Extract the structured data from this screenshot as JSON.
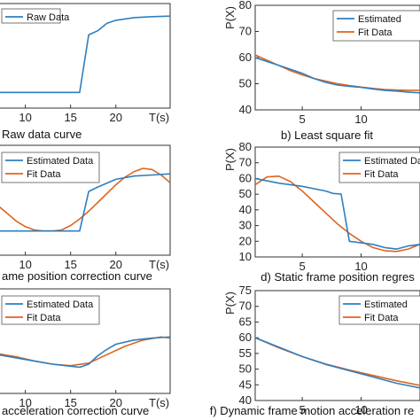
{
  "colors": {
    "estimated": "#2d7fc0",
    "fit": "#e0641e",
    "axis": "#333333",
    "background": "#ffffff"
  },
  "chart_data": [
    {
      "id": "a",
      "type": "line",
      "caption": "Raw data curve",
      "xunit": "T(s)",
      "ylabel": "",
      "xticks": [
        10,
        15,
        20
      ],
      "xlim": [
        7,
        26
      ],
      "ylim": [
        0,
        100
      ],
      "grid": false,
      "legend": {
        "position": "top-left",
        "entries": [
          "Raw Data"
        ]
      },
      "series": [
        {
          "name": "Raw Data",
          "color_key": "estimated",
          "x": [
            7,
            16,
            17,
            18,
            19,
            20,
            22,
            24,
            26
          ],
          "y": [
            15,
            15,
            70,
            74,
            81,
            84,
            86.5,
            87.5,
            88
          ]
        }
      ]
    },
    {
      "id": "b",
      "type": "line",
      "caption": "b) Least square fit",
      "xunit": "",
      "ylabel": "P(X)",
      "yticks": [
        40,
        50,
        60,
        70,
        80
      ],
      "xticks": [
        5,
        10
      ],
      "xlim": [
        1,
        15
      ],
      "ylim": [
        40,
        80
      ],
      "grid": false,
      "legend": {
        "position": "top-right",
        "entries": [
          "Estimated",
          "Fit Data"
        ]
      },
      "series": [
        {
          "name": "Estimated",
          "color_key": "estimated",
          "x": [
            1,
            2,
            3,
            4,
            5,
            6,
            7,
            8,
            9,
            10,
            11,
            12,
            13,
            14,
            15
          ],
          "y": [
            60,
            58.5,
            57,
            55.5,
            54,
            52,
            50.5,
            49.5,
            49,
            48.6,
            48,
            47.5,
            47.2,
            46.8,
            46.5
          ]
        },
        {
          "name": "Fit Data",
          "color_key": "fit",
          "x": [
            1,
            2,
            3,
            4,
            5,
            6,
            7,
            8,
            9,
            10,
            11,
            12,
            13,
            14,
            15
          ],
          "y": [
            61,
            59,
            57,
            55,
            53.4,
            52,
            51,
            50,
            49.3,
            48.7,
            48.2,
            47.8,
            47.6,
            47.5,
            47.5
          ]
        }
      ]
    },
    {
      "id": "c",
      "type": "line",
      "caption": "ame position correction curve",
      "xunit": "T(s)",
      "ylabel": "",
      "xticks": [
        10,
        15,
        20
      ],
      "xlim": [
        7,
        26
      ],
      "ylim": [
        0,
        100
      ],
      "grid": false,
      "legend": {
        "position": "top-left",
        "entries": [
          "Estimated Data",
          "Fit Data"
        ]
      },
      "series": [
        {
          "name": "Estimated Data",
          "color_key": "estimated",
          "x": [
            7,
            16,
            17,
            18,
            20,
            22,
            24,
            26
          ],
          "y": [
            22,
            22,
            58,
            62,
            69,
            72,
            73,
            74
          ]
        },
        {
          "name": "Fit Data",
          "color_key": "fit",
          "x": [
            7,
            8,
            9,
            10,
            11,
            12,
            13,
            14,
            15,
            16,
            17,
            18,
            19,
            20,
            21,
            22,
            23,
            24,
            25,
            26
          ],
          "y": [
            45,
            38,
            31,
            26,
            23,
            22,
            22,
            23,
            27,
            33,
            40,
            48,
            56,
            64,
            71,
            76,
            79,
            78,
            73,
            66
          ]
        }
      ]
    },
    {
      "id": "d",
      "type": "line",
      "caption": "d) Static frame position regres",
      "xunit": "",
      "ylabel": "P(X)",
      "yticks": [
        10,
        20,
        30,
        40,
        50,
        60,
        70,
        80
      ],
      "xticks": [
        5,
        10
      ],
      "xlim": [
        1,
        15
      ],
      "ylim": [
        10,
        80
      ],
      "grid": false,
      "legend": {
        "position": "top-right",
        "entries": [
          "Estimated Data",
          "Fit Data"
        ]
      },
      "series": [
        {
          "name": "Estimated Data",
          "color_key": "estimated",
          "x": [
            1,
            3,
            5,
            7,
            7.6,
            8.3,
            9,
            11,
            12,
            13,
            14,
            15
          ],
          "y": [
            60,
            57,
            55,
            52,
            50.5,
            50,
            20,
            18,
            16,
            15,
            17,
            18
          ]
        },
        {
          "name": "Fit Data",
          "color_key": "fit",
          "x": [
            1,
            2,
            3,
            4,
            5,
            6,
            7,
            8,
            9,
            10,
            11,
            12,
            13,
            14,
            15
          ],
          "y": [
            56,
            61,
            61.5,
            58,
            52,
            45,
            38,
            31,
            25,
            20,
            16,
            14,
            13.5,
            15,
            18
          ]
        }
      ]
    },
    {
      "id": "e",
      "type": "line",
      "caption": "acceleration correction curve",
      "xunit": "T(s)",
      "ylabel": "",
      "xticks": [
        10,
        15,
        20
      ],
      "xlim": [
        7,
        26
      ],
      "ylim": [
        0,
        100
      ],
      "grid": false,
      "legend": {
        "position": "top-left",
        "entries": [
          "Estimated Data",
          "Fit Data"
        ]
      },
      "series": [
        {
          "name": "Estimated Data",
          "color_key": "estimated",
          "x": [
            7,
            9,
            11,
            13,
            15,
            16,
            17,
            18,
            19,
            20,
            22,
            24,
            26
          ],
          "y": [
            37,
            34,
            31,
            28,
            26,
            25,
            28,
            36,
            42,
            47,
            51,
            53,
            54
          ]
        },
        {
          "name": "Fit Data",
          "color_key": "fit",
          "x": [
            7,
            9,
            11,
            13,
            15,
            17,
            19,
            21,
            23,
            25,
            26
          ],
          "y": [
            38,
            35,
            31,
            28,
            26.5,
            29,
            37,
            45,
            51,
            54,
            53
          ]
        }
      ]
    },
    {
      "id": "f",
      "type": "line",
      "caption": "f) Dynamic frame motion acceleration re",
      "xunit": "",
      "ylabel": "P(X)",
      "yticks": [
        40,
        45,
        50,
        55,
        60,
        65,
        70,
        75
      ],
      "xticks": [
        5,
        10
      ],
      "xlim": [
        1,
        15
      ],
      "ylim": [
        40,
        75
      ],
      "grid": false,
      "legend": {
        "position": "top-right",
        "entries": [
          "Estimated",
          "Fit Data"
        ]
      },
      "series": [
        {
          "name": "Estimated",
          "color_key": "estimated",
          "x": [
            1,
            3,
            5,
            7,
            9,
            11,
            13,
            15
          ],
          "y": [
            60,
            57,
            54,
            51.5,
            49.5,
            47.5,
            45.5,
            44
          ]
        },
        {
          "name": "Fit Data",
          "color_key": "fit",
          "x": [
            1,
            3,
            5,
            7,
            9,
            11,
            13,
            15
          ],
          "y": [
            60,
            56.8,
            54,
            51.6,
            49.7,
            48,
            46.3,
            44.8
          ]
        }
      ]
    }
  ]
}
